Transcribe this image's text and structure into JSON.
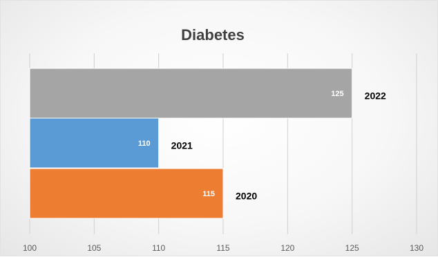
{
  "chart_data": {
    "type": "bar",
    "orientation": "horizontal",
    "title": "Diabetes",
    "categories": [
      "2022",
      "2021",
      "2020"
    ],
    "values": [
      125,
      110,
      115
    ],
    "colors": [
      "#a5a5a5",
      "#5b9bd5",
      "#ed7d31"
    ],
    "xlim": [
      100,
      130
    ],
    "xticks": [
      100,
      105,
      110,
      115,
      120,
      125,
      130
    ],
    "grid": "vertical",
    "legend": "none",
    "category_label_position": "right-of-bar"
  }
}
